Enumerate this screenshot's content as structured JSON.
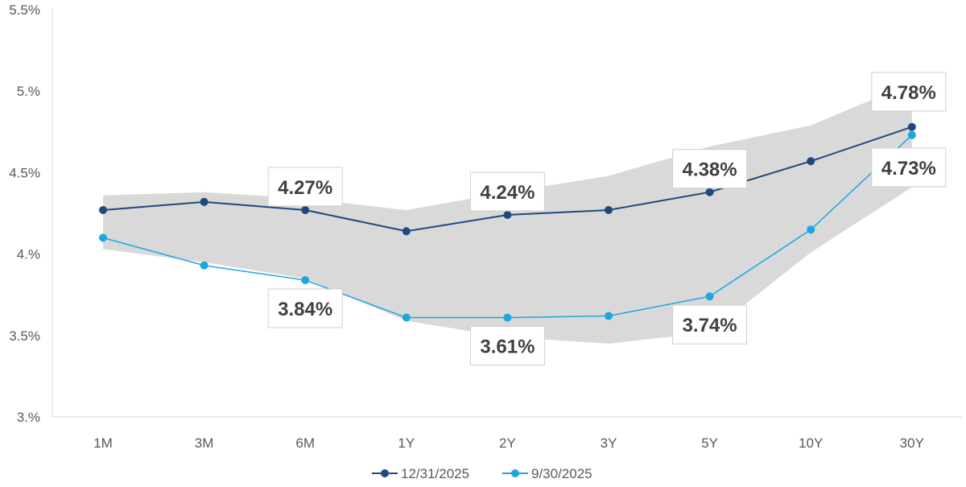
{
  "chart_data": {
    "type": "line",
    "title": "",
    "xlabel": "",
    "ylabel": "",
    "categories": [
      "1M",
      "3M",
      "6M",
      "1Y",
      "2Y",
      "3Y",
      "5Y",
      "10Y",
      "30Y"
    ],
    "ylim": [
      3.0,
      5.5
    ],
    "yticks": [
      3.0,
      3.5,
      4.0,
      4.5,
      5.0,
      5.5
    ],
    "ytick_labels": [
      "3.%",
      "3.5%",
      "4.%",
      "4.5%",
      "5.%",
      "5.5%"
    ],
    "grid": false,
    "legend_position": "bottom",
    "range_band": {
      "color": "#d9d9d9",
      "upper": [
        4.36,
        4.38,
        4.34,
        4.27,
        4.38,
        4.48,
        4.66,
        4.79,
        5.05
      ],
      "lower": [
        4.03,
        3.95,
        3.85,
        3.59,
        3.49,
        3.45,
        3.52,
        4.01,
        4.41
      ]
    },
    "series": [
      {
        "name": "12/31/2025",
        "color": "#1f497d",
        "values": [
          4.27,
          4.32,
          4.27,
          4.14,
          4.24,
          4.27,
          4.38,
          4.57,
          4.78
        ],
        "data_labels": [
          null,
          null,
          "4.27%",
          null,
          "4.24%",
          null,
          "4.38%",
          null,
          "4.78%"
        ]
      },
      {
        "name": "9/30/2025",
        "color": "#1ea6df",
        "values": [
          4.1,
          3.93,
          3.84,
          3.61,
          3.61,
          3.62,
          3.74,
          4.15,
          4.73
        ],
        "data_labels": [
          null,
          null,
          "3.84%",
          null,
          "3.61%",
          null,
          "3.74%",
          null,
          "4.73%"
        ]
      }
    ]
  }
}
